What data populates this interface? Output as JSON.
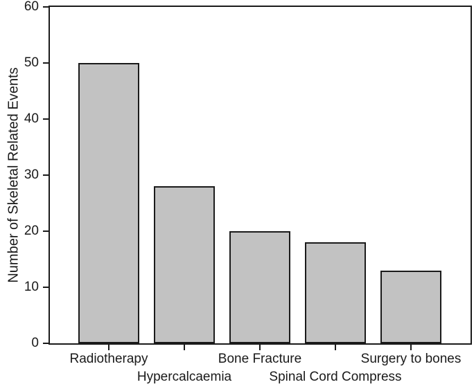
{
  "chart_data": {
    "type": "bar",
    "title": "",
    "xlabel": "",
    "ylabel": "Number of Skeletal Related Events",
    "categories": [
      "Radiotherapy",
      "Hypercalcaemia",
      "Bone Fracture",
      "Spinal Cord Compress",
      "Surgery to bones"
    ],
    "values": [
      50,
      28,
      20,
      18,
      13
    ],
    "ylim": [
      0,
      60
    ],
    "yticks": [
      0,
      10,
      20,
      30,
      40,
      50,
      60
    ],
    "grid": false,
    "legend": "none",
    "layout_hints": {
      "category_label_arrangement": "staggered-two-rows",
      "frame": "full-box"
    },
    "colors": {
      "bar_fill": "#c2c2c2",
      "bar_edge": "#1a1a1a",
      "axis": "#1a1a1a",
      "text": "#1a1a1a",
      "background": "#ffffff"
    }
  }
}
